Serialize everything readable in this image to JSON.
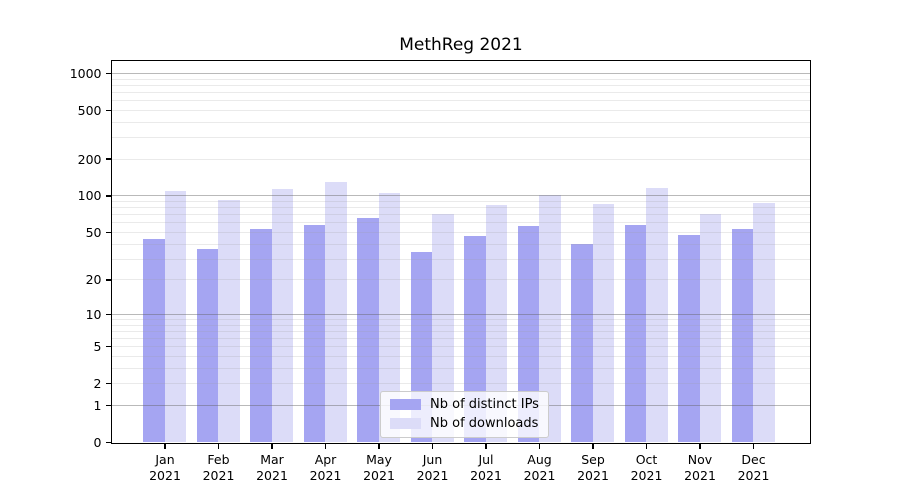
{
  "chart_data": {
    "type": "bar",
    "title": "MethReg 2021",
    "categories": [
      "Jan 2021",
      "Feb 2021",
      "Mar 2021",
      "Apr 2021",
      "May 2021",
      "Jun 2021",
      "Jul 2021",
      "Aug 2021",
      "Sep 2021",
      "Oct 2021",
      "Nov 2021",
      "Dec 2021"
    ],
    "months": [
      "Jan",
      "Feb",
      "Mar",
      "Apr",
      "May",
      "Jun",
      "Jul",
      "Aug",
      "Sep",
      "Oct",
      "Nov",
      "Dec"
    ],
    "year": "2021",
    "series": [
      {
        "name": "Nb of distinct IPs",
        "color": "#a5a5f2",
        "values": [
          44,
          36,
          53,
          57,
          65,
          34,
          46,
          56,
          40,
          57,
          47,
          53
        ]
      },
      {
        "name": "Nb of downloads",
        "color": "#dcdcf8",
        "values": [
          108,
          91,
          114,
          130,
          104,
          70,
          84,
          101,
          85,
          116,
          71,
          87
        ]
      }
    ],
    "xlabel": "",
    "ylabel": "",
    "y_ticks": [
      0,
      1,
      2,
      5,
      10,
      20,
      50,
      100,
      200,
      500,
      1000
    ],
    "y_scale": "log10(1+x)",
    "ylim": [
      0,
      1250
    ],
    "grid": true,
    "legend_position": "lower center"
  },
  "colors": {
    "bar_distinct_ips": "#a5a5f2",
    "bar_downloads": "#dcdcf8",
    "axis": "#000000",
    "grid_major": "#b3b3b3",
    "grid_minor": "#e7e7e7",
    "background": "#ffffff"
  }
}
